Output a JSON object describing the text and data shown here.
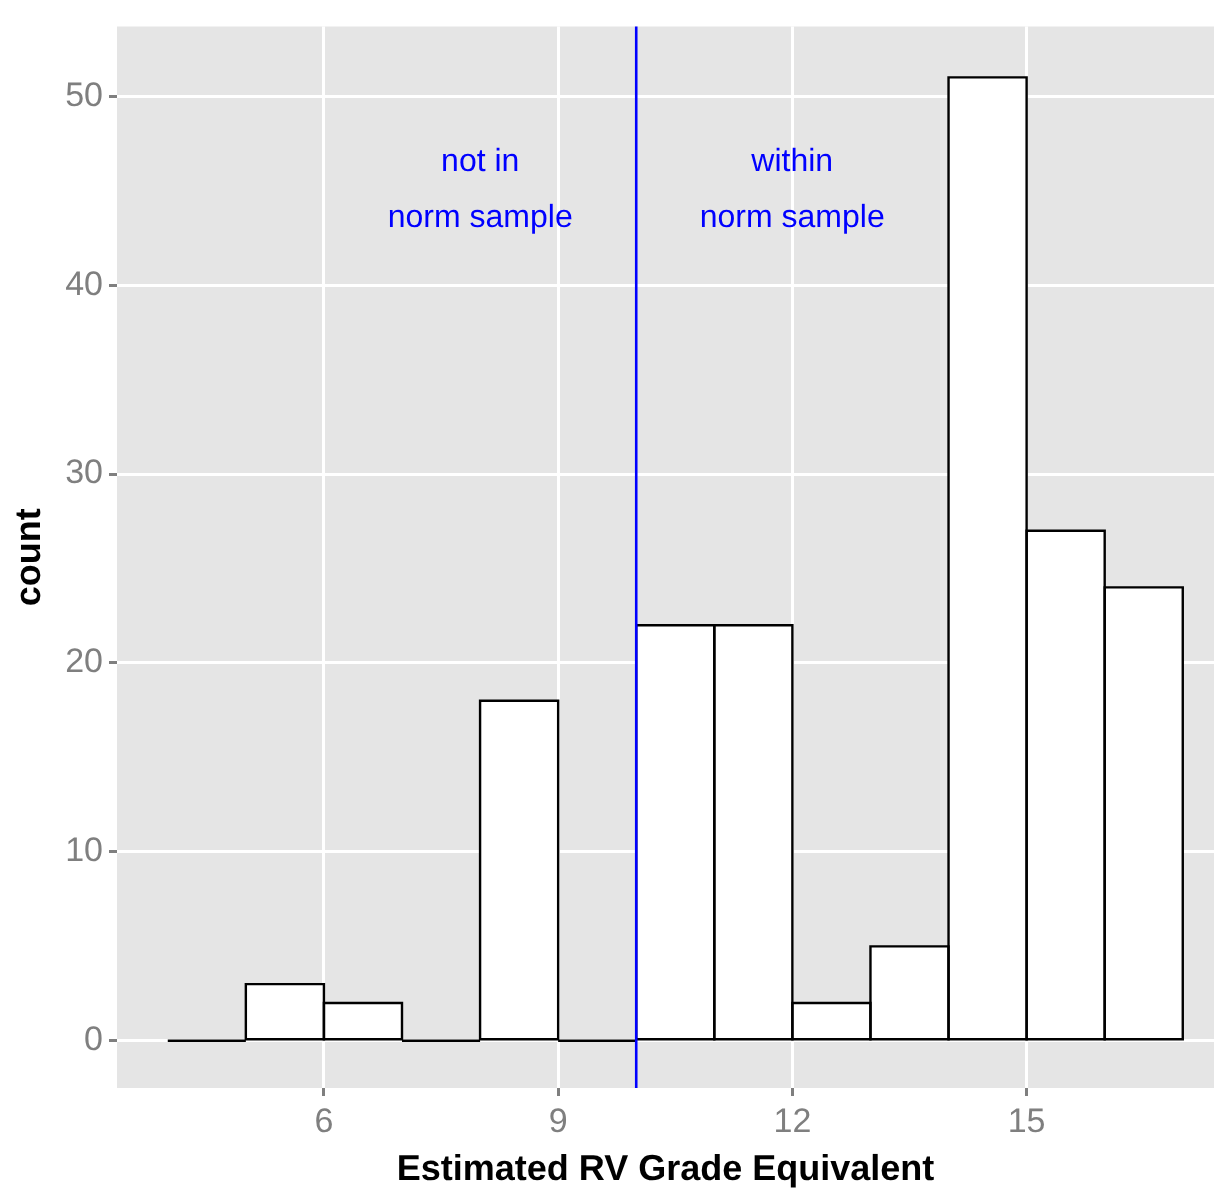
{
  "chart_data": {
    "type": "histogram",
    "xlabel": "Estimated RV Grade Equivalent",
    "ylabel": "count",
    "bins": [
      4,
      5,
      6,
      7,
      8,
      9,
      10,
      11,
      12,
      13,
      14,
      15,
      16,
      17
    ],
    "values": [
      0,
      3,
      2,
      0,
      18,
      0,
      22,
      22,
      2,
      5,
      51,
      27,
      24
    ],
    "color": "#ffffff",
    "xlim": [
      3.35,
      17.4
    ],
    "ylim": [
      -2.5,
      53.7
    ],
    "xticks": [
      6,
      9,
      12,
      15
    ],
    "yticks": [
      0,
      10,
      20,
      30,
      40,
      50
    ],
    "grid": true,
    "legend": false,
    "ref_lines": [
      {
        "axis": "x",
        "value": 10,
        "color": "#0000ff"
      }
    ],
    "annotations": [
      "not in\nnorm sample",
      "within\nnorm sample"
    ]
  }
}
